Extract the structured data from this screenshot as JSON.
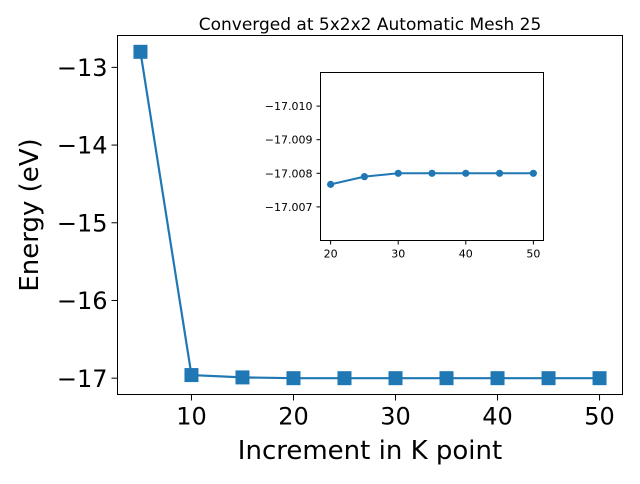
{
  "chart_data": [
    {
      "type": "line",
      "title": "Converged at 5x2x2 Automatic Mesh 25",
      "xlabel": "Increment in K point",
      "ylabel": "Energy (eV)",
      "xlim": [
        2.75,
        52.25
      ],
      "ylim": [
        -17.21,
        -12.59
      ],
      "xticks": [
        10,
        20,
        30,
        40,
        50
      ],
      "xtick_labels": [
        "10",
        "20",
        "30",
        "40",
        "50"
      ],
      "yticks": [
        -13,
        -14,
        -15,
        -16,
        -17
      ],
      "ytick_labels": [
        "−13",
        "−14",
        "−15",
        "−16",
        "−17"
      ],
      "grid": false,
      "series": [
        {
          "color": "#1f77b4",
          "marker": "square",
          "x": [
            5,
            10,
            15,
            20,
            25,
            30,
            35,
            40,
            45,
            50
          ],
          "y": [
            -12.8,
            -16.96,
            -16.99,
            -17.0,
            -17.0,
            -17.0,
            -17.0,
            -17.0,
            -17.0,
            -17.0
          ]
        }
      ]
    },
    {
      "type": "line",
      "title": "",
      "xlabel": "",
      "ylabel": "",
      "xlim": [
        18.5,
        51.5
      ],
      "ylim": [
        -17.006,
        -17.011
      ],
      "xticks": [
        20,
        30,
        40,
        50
      ],
      "xtick_labels": [
        "20",
        "30",
        "40",
        "50"
      ],
      "yticks": [
        -17.01,
        -17.009,
        -17.008,
        -17.007
      ],
      "ytick_labels": [
        "−17.010",
        "−17.009",
        "−17.008",
        "−17.007"
      ],
      "grid": false,
      "series": [
        {
          "color": "#1f77b4",
          "marker": "circle",
          "x": [
            20,
            25,
            30,
            35,
            40,
            45,
            50
          ],
          "y": [
            -17.00767,
            -17.0079,
            -17.008,
            -17.008,
            -17.008,
            -17.008,
            -17.008
          ]
        }
      ]
    }
  ]
}
